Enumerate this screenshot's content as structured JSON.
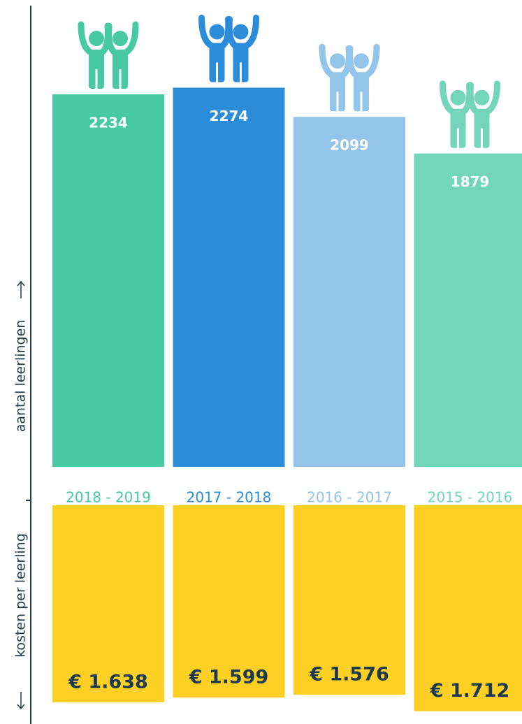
{
  "chart_data": [
    {
      "type": "bar",
      "axis_label": "aantal leerlingen",
      "categories": [
        "2018 - 2019",
        "2017 - 2018",
        "2016 - 2017",
        "2015 - 2016"
      ],
      "values": [
        2234,
        2274,
        2099,
        1879
      ],
      "colors": [
        "#47c9a2",
        "#2b8cd9",
        "#93c4ea",
        "#73d6b9"
      ],
      "ylim": [
        0,
        2800
      ]
    },
    {
      "type": "bar",
      "axis_label": "kosten per leerling",
      "values": [
        1638,
        1599,
        1576,
        1712
      ],
      "value_labels": [
        "€ 1.638",
        "€ 1.599",
        "€ 1.576",
        "€ 1.712"
      ],
      "color": "#fdd023",
      "ylim": [
        0,
        1900
      ]
    }
  ]
}
